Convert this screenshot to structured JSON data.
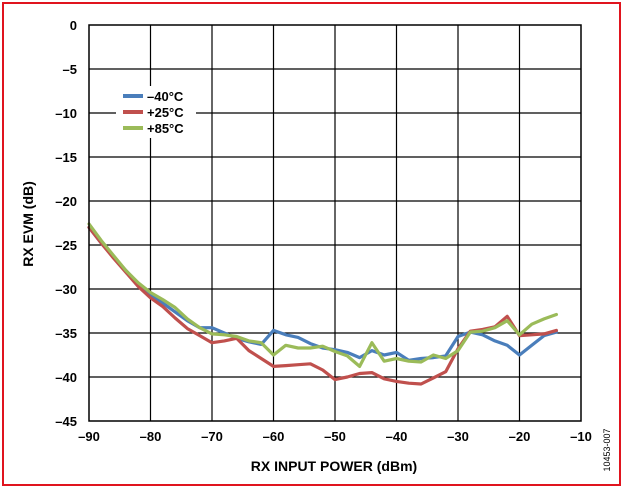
{
  "chart_data": {
    "type": "line",
    "xlabel": "RX INPUT POWER (dBm)",
    "ylabel": "RX EVM (dB)",
    "xlim": [
      -90,
      -10
    ],
    "ylim": [
      -45,
      0
    ],
    "xticks": [
      -90,
      -80,
      -70,
      -60,
      -50,
      -40,
      -30,
      -20,
      -10
    ],
    "yticks": [
      0,
      -5,
      -10,
      -15,
      -20,
      -25,
      -30,
      -35,
      -40,
      -45
    ],
    "xtick_labels": [
      "–90",
      "–80",
      "–70",
      "–60",
      "–50",
      "–40",
      "–30",
      "–20",
      "–10"
    ],
    "ytick_labels": [
      "0",
      "–5",
      "–10",
      "–15",
      "–20",
      "–25",
      "–30",
      "–35",
      "–40",
      "–45"
    ],
    "grid": true,
    "legend_position": "top-left",
    "series": [
      {
        "name": "–40°C",
        "color": "#4a7ebb",
        "x": [
          -90,
          -88,
          -86,
          -84,
          -82,
          -80,
          -78,
          -76,
          -74,
          -72,
          -70,
          -68,
          -66,
          -64,
          -62,
          -60,
          -58,
          -56,
          -54,
          -52,
          -50,
          -48,
          -46,
          -44,
          -42,
          -40,
          -38,
          -36,
          -34,
          -32,
          -30,
          -28,
          -26,
          -24,
          -22,
          -20,
          -18,
          -16,
          -14
        ],
        "y": [
          -23,
          -24.8,
          -26.4,
          -27.9,
          -29.4,
          -30.6,
          -31.6,
          -32.6,
          -33.6,
          -34.4,
          -34.4,
          -35.0,
          -35.6,
          -36.0,
          -36.3,
          -34.7,
          -35.2,
          -35.5,
          -36.2,
          -36.7,
          -36.9,
          -37.2,
          -37.8,
          -37.0,
          -37.5,
          -37.2,
          -38.1,
          -37.9,
          -37.8,
          -37.6,
          -35.4,
          -34.9,
          -35.2,
          -35.9,
          -36.4,
          -37.5,
          -36.4,
          -35.3,
          -34.9
        ]
      },
      {
        "name": "+25°C",
        "color": "#c0504d",
        "x": [
          -90,
          -88,
          -86,
          -84,
          -82,
          -80,
          -78,
          -76,
          -74,
          -72,
          -70,
          -68,
          -66,
          -64,
          -62,
          -60,
          -58,
          -56,
          -54,
          -52,
          -50,
          -48,
          -46,
          -44,
          -42,
          -40,
          -38,
          -36,
          -34,
          -32,
          -30,
          -28,
          -26,
          -24,
          -22,
          -20,
          -18,
          -16,
          -14
        ],
        "y": [
          -23,
          -24.8,
          -26.5,
          -28.1,
          -29.7,
          -31.0,
          -32.0,
          -33.3,
          -34.5,
          -35.3,
          -36.1,
          -35.9,
          -35.6,
          -37.0,
          -37.9,
          -38.8,
          -38.7,
          -38.6,
          -38.5,
          -39.2,
          -40.3,
          -40.0,
          -39.6,
          -39.5,
          -40.2,
          -40.5,
          -40.7,
          -40.8,
          -40.1,
          -39.4,
          -36.8,
          -34.8,
          -34.6,
          -34.3,
          -33.1,
          -35.3,
          -35.2,
          -35.1,
          -34.7
        ]
      },
      {
        "name": "+85°C",
        "color": "#9bbb59",
        "x": [
          -90,
          -88,
          -86,
          -84,
          -82,
          -80,
          -78,
          -76,
          -74,
          -72,
          -70,
          -68,
          -66,
          -64,
          -62,
          -60,
          -58,
          -56,
          -54,
          -52,
          -50,
          -48,
          -46,
          -44,
          -42,
          -40,
          -38,
          -36,
          -34,
          -32,
          -30,
          -28,
          -26,
          -24,
          -22,
          -20,
          -18,
          -16,
          -14
        ],
        "y": [
          -22.6,
          -24.5,
          -26.2,
          -27.9,
          -29.3,
          -30.4,
          -31.2,
          -32.1,
          -33.4,
          -34.4,
          -35.1,
          -35.2,
          -35.4,
          -35.9,
          -36.1,
          -37.5,
          -36.4,
          -36.7,
          -36.7,
          -36.5,
          -37.1,
          -37.6,
          -38.8,
          -36.1,
          -38.2,
          -37.9,
          -38.2,
          -38.3,
          -37.5,
          -37.9,
          -37.0,
          -34.9,
          -34.8,
          -34.4,
          -33.6,
          -35.2,
          -34.0,
          -33.4,
          -32.9
        ]
      }
    ]
  },
  "figure_id": "10453-007"
}
